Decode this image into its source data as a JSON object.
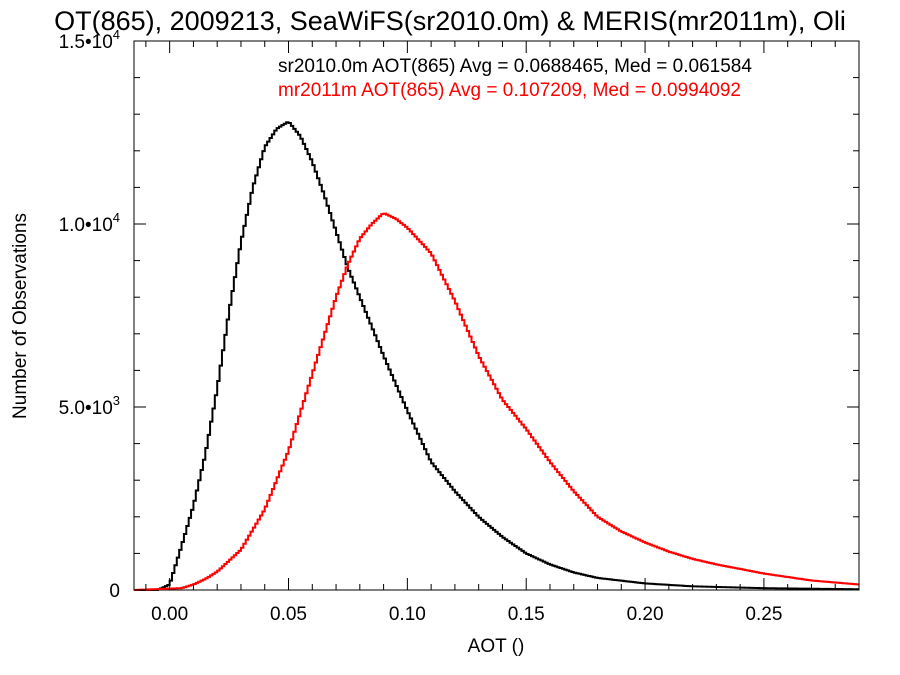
{
  "chart_data": {
    "type": "line",
    "title": "OT(865), 2009213, SeaWiFS(sr2010.0m) & MERIS(mr2011m), Oli",
    "xlabel": "AOT ()",
    "ylabel": "Number of Observations",
    "xlim": [
      -0.015,
      0.29
    ],
    "ylim": [
      0,
      15000
    ],
    "x_ticks": [
      {
        "value": 0.0,
        "label": "0.00"
      },
      {
        "value": 0.05,
        "label": "0.05"
      },
      {
        "value": 0.1,
        "label": "0.10"
      },
      {
        "value": 0.15,
        "label": "0.15"
      },
      {
        "value": 0.2,
        "label": "0.20"
      },
      {
        "value": 0.25,
        "label": "0.25"
      }
    ],
    "y_ticks": [
      {
        "value": 0,
        "mantissa": "0",
        "exponent": ""
      },
      {
        "value": 5000,
        "mantissa": "5.0•10",
        "exponent": "3"
      },
      {
        "value": 10000,
        "mantissa": "1.0•10",
        "exponent": "4"
      },
      {
        "value": 15000,
        "mantissa": "1.5•10",
        "exponent": "4"
      }
    ],
    "grid": false,
    "legend_position": "top-right",
    "series": [
      {
        "legend": "sr2010.0m AOT(865) Avg = 0.0688465, Med = 0.061584",
        "color": "#000000",
        "x": [
          -0.015,
          -0.005,
          0.0,
          0.005,
          0.01,
          0.015,
          0.02,
          0.025,
          0.03,
          0.035,
          0.04,
          0.045,
          0.05,
          0.055,
          0.06,
          0.065,
          0.07,
          0.075,
          0.08,
          0.09,
          0.1,
          0.11,
          0.12,
          0.13,
          0.14,
          0.15,
          0.16,
          0.17,
          0.18,
          0.2,
          0.22,
          0.25,
          0.29
        ],
        "y": [
          0,
          0,
          150,
          1200,
          2300,
          3700,
          5500,
          7600,
          9500,
          11000,
          12100,
          12600,
          12800,
          12400,
          11700,
          10800,
          9800,
          8800,
          8000,
          6400,
          4900,
          3500,
          2700,
          2000,
          1450,
          1000,
          700,
          480,
          330,
          180,
          100,
          50,
          20
        ]
      },
      {
        "legend": "mr2011m AOT(865) Avg = 0.107209, Med = 0.0994092",
        "color": "#ff0000",
        "x": [
          -0.015,
          0.005,
          0.01,
          0.015,
          0.02,
          0.03,
          0.04,
          0.05,
          0.06,
          0.07,
          0.075,
          0.08,
          0.085,
          0.09,
          0.095,
          0.1,
          0.11,
          0.12,
          0.13,
          0.14,
          0.15,
          0.16,
          0.17,
          0.18,
          0.19,
          0.2,
          0.21,
          0.22,
          0.23,
          0.25,
          0.27,
          0.29
        ],
        "y": [
          0,
          50,
          150,
          300,
          500,
          1100,
          2200,
          3800,
          5900,
          8000,
          8900,
          9600,
          10000,
          10300,
          10150,
          9900,
          9200,
          7900,
          6400,
          5200,
          4400,
          3500,
          2700,
          2000,
          1600,
          1300,
          1050,
          850,
          700,
          450,
          260,
          150
        ]
      }
    ]
  }
}
